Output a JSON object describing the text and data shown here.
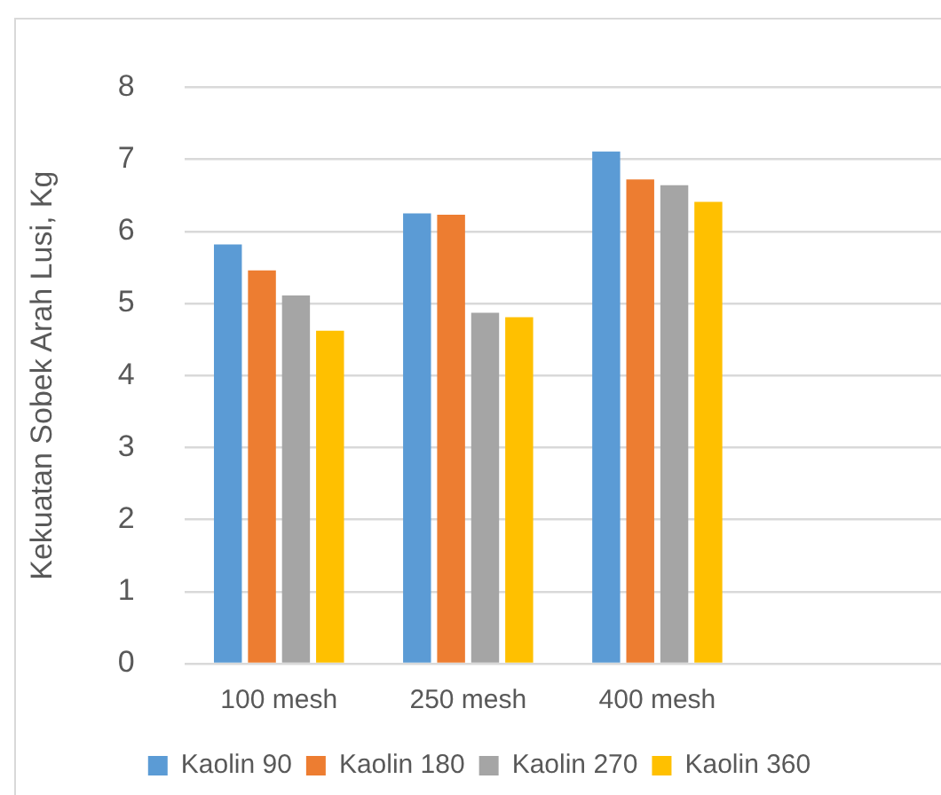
{
  "chart_data": {
    "type": "bar",
    "ylabel": "Kekuatan Sobek Arah Lusi, Kg",
    "categories": [
      "100 mesh",
      "250 mesh",
      "400 mesh",
      null
    ],
    "series": [
      {
        "name": "Kaolin 90",
        "color": "#5b9bd5",
        "values": [
          5.82,
          6.25,
          7.11,
          null
        ]
      },
      {
        "name": "Kaolin 180",
        "color": "#ed7d31",
        "values": [
          5.46,
          6.23,
          6.72,
          null
        ]
      },
      {
        "name": "Kaolin 270",
        "color": "#a5a5a5",
        "values": [
          5.11,
          4.87,
          6.64,
          null
        ]
      },
      {
        "name": "Kaolin 360",
        "color": "#ffc000",
        "values": [
          4.62,
          4.81,
          6.41,
          null
        ]
      }
    ],
    "ylim": [
      0,
      8
    ],
    "yticks": [
      0,
      1,
      2,
      3,
      4,
      5,
      6,
      7,
      8
    ],
    "grid": "y",
    "legend": "bottom"
  }
}
